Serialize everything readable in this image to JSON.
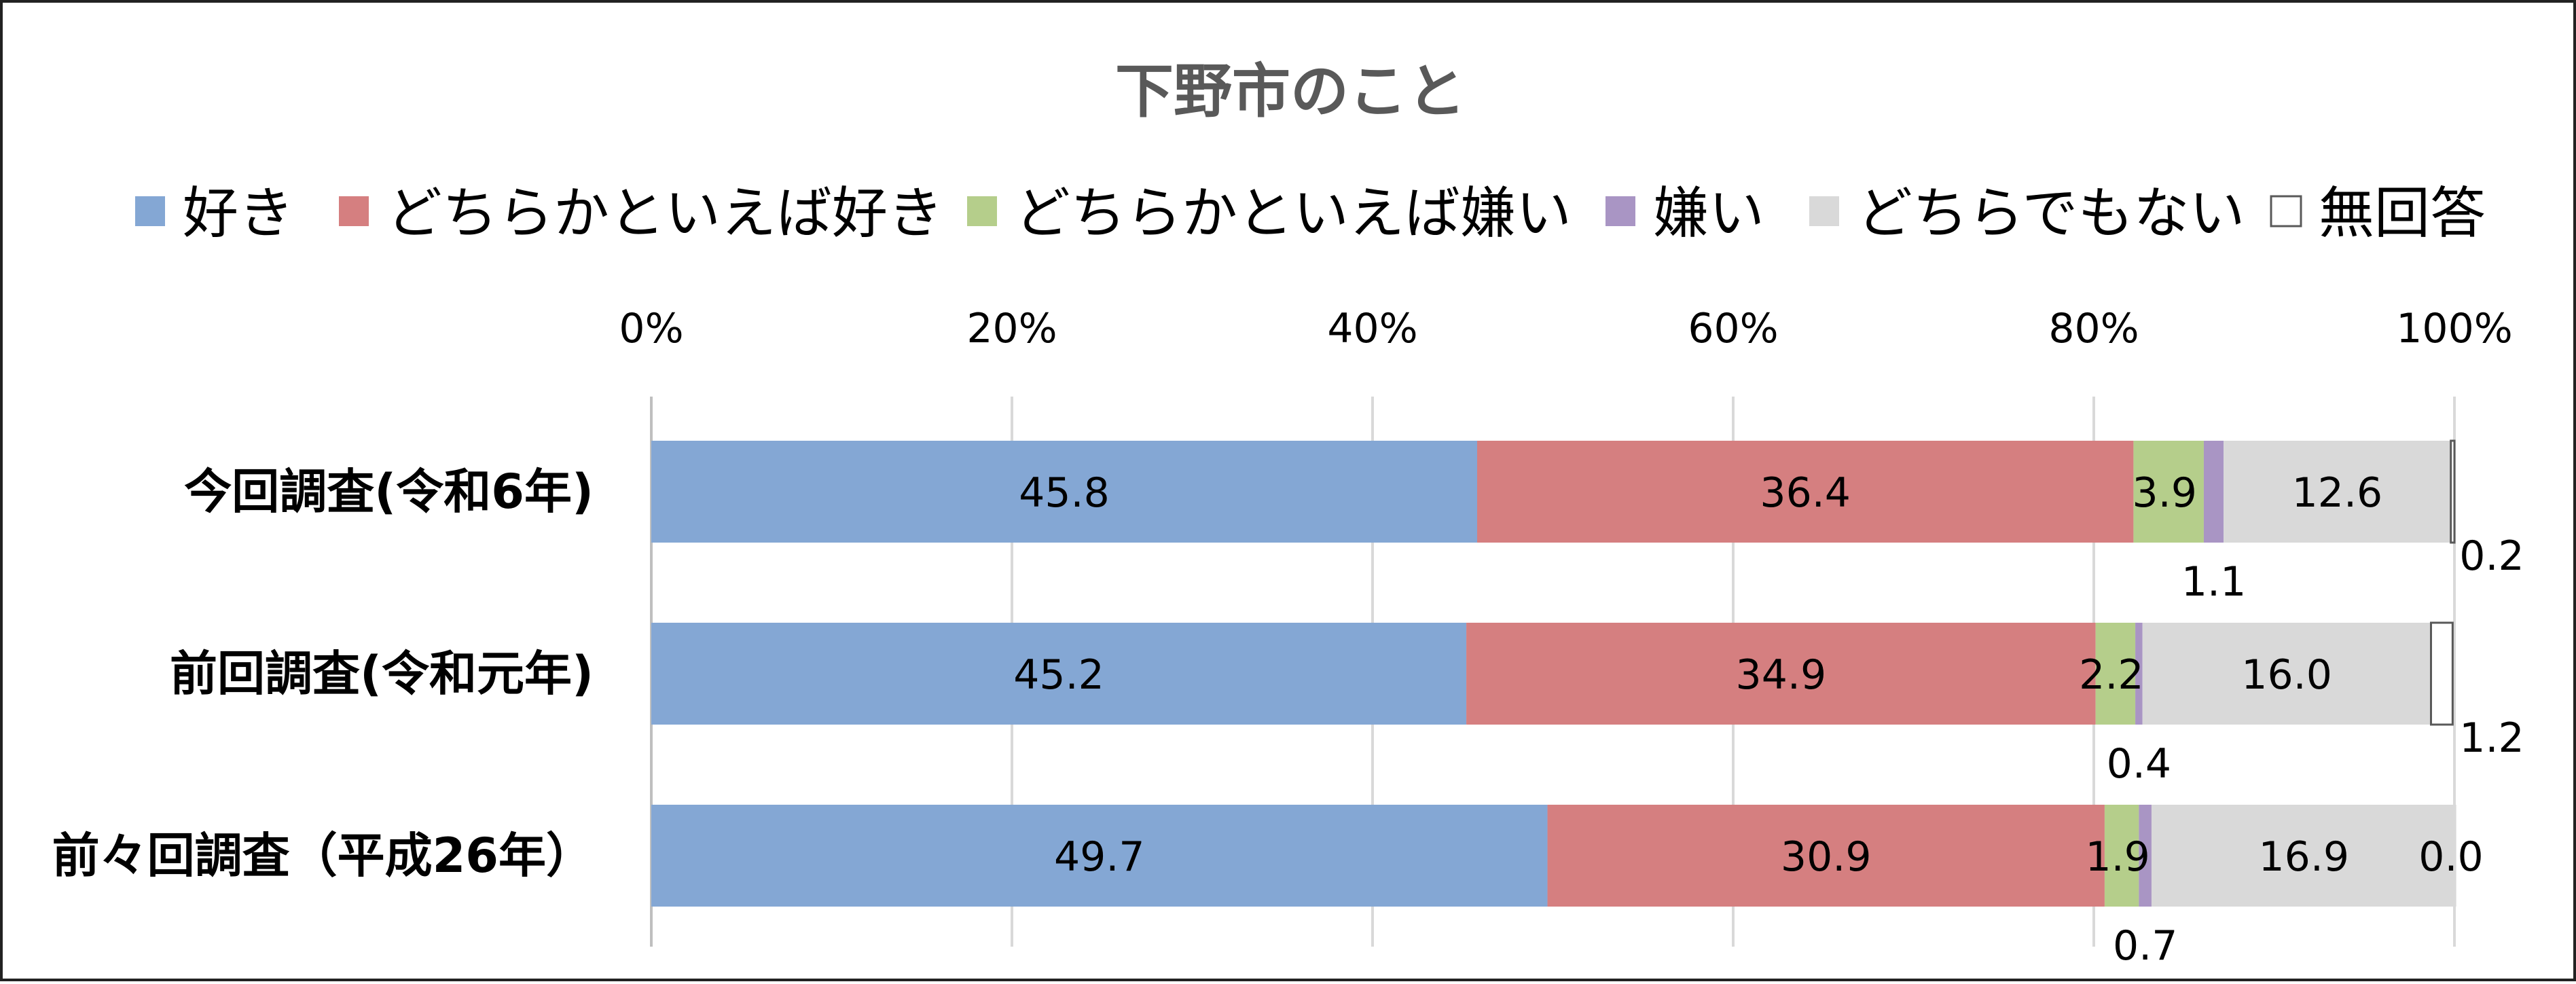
{
  "chart_data": {
    "type": "bar",
    "orientation": "horizontal",
    "stacked": "percent",
    "title": "下野市のこと",
    "legend_position": "top",
    "grid": true,
    "xlim": [
      0,
      100
    ],
    "x_ticks": [
      "0%",
      "20%",
      "40%",
      "60%",
      "80%",
      "100%"
    ],
    "categories": [
      "今回調査(令和6年)",
      "前回調査(令和元年)",
      "前々回調査（平成26年）"
    ],
    "series": [
      {
        "name": "好き",
        "color": "#84A7D4",
        "values": [
          45.8,
          45.2,
          49.7
        ],
        "labels": [
          "45.8",
          "45.2",
          "49.7"
        ]
      },
      {
        "name": "どちらかといえば好き",
        "color": "#D57F80",
        "values": [
          36.4,
          34.9,
          30.9
        ],
        "labels": [
          "36.4",
          "34.9",
          "30.9"
        ]
      },
      {
        "name": "どちらかといえば嫌い",
        "color": "#B5CE8B",
        "values": [
          3.9,
          2.2,
          1.9
        ],
        "labels": [
          "3.9",
          "2.2",
          "1.9"
        ]
      },
      {
        "name": "嫌い",
        "color": "#A995C4",
        "values": [
          1.1,
          0.4,
          0.7
        ],
        "labels": [
          "1.1",
          "0.4",
          "0.7"
        ]
      },
      {
        "name": "どちらでもない",
        "color": "#D9D9D9",
        "values": [
          12.6,
          16.0,
          16.9
        ],
        "labels": [
          "12.6",
          "16.0",
          "16.9"
        ]
      },
      {
        "name": "無回答",
        "color": "#FFFFFF",
        "values": [
          0.2,
          1.2,
          0.0
        ],
        "labels": [
          "0.2",
          "1.2",
          "0.0"
        ]
      }
    ]
  }
}
